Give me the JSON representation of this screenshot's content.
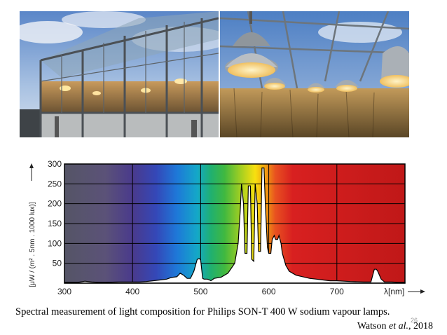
{
  "caption": "Spectral measurement of light composition for Philips SON-T 400 W sodium vapour lamps.",
  "citation": {
    "author": "Watson",
    "etal": "et al.,",
    "year": "2018"
  },
  "slide_number": "26",
  "chart_data": {
    "type": "area",
    "xlabel": "λ[nm]",
    "ylabel": "[μW / (m² . 5nm . 1000 lux)]",
    "xlim": [
      300,
      800
    ],
    "ylim": [
      0,
      300
    ],
    "x_ticks": [
      "300",
      "400",
      "500",
      "600",
      "700"
    ],
    "y_ticks": [
      "50",
      "100",
      "150",
      "200",
      "250",
      "300"
    ],
    "grid": true,
    "series": [
      {
        "x": [
          300,
          310,
          320,
          330,
          340,
          350,
          360,
          380,
          400,
          410,
          420,
          430,
          440,
          450,
          455,
          460,
          465,
          470,
          475,
          480,
          485,
          490,
          495,
          498,
          500,
          503,
          505,
          510,
          513,
          515,
          520,
          530,
          540,
          550,
          555,
          558,
          560,
          563,
          565,
          568,
          570,
          573,
          575,
          578,
          580,
          583,
          585,
          588,
          590,
          593,
          595,
          598,
          600,
          603,
          605,
          608,
          610,
          613,
          615,
          618,
          620,
          625,
          630,
          635,
          640,
          650,
          660,
          670,
          680,
          690,
          700,
          720,
          740,
          750,
          755,
          758,
          760,
          765,
          770,
          780,
          790,
          800
        ],
        "y": [
          2,
          2,
          2,
          5,
          3,
          2,
          2,
          3,
          3,
          3,
          4,
          6,
          8,
          10,
          13,
          15,
          16,
          25,
          20,
          12,
          12,
          30,
          60,
          62,
          58,
          12,
          10,
          10,
          8,
          6,
          12,
          15,
          25,
          50,
          100,
          180,
          250,
          200,
          75,
          75,
          245,
          245,
          60,
          55,
          250,
          200,
          80,
          80,
          290,
          290,
          200,
          90,
          75,
          75,
          110,
          120,
          110,
          110,
          120,
          100,
          75,
          45,
          30,
          25,
          20,
          16,
          12,
          10,
          8,
          6,
          6,
          4,
          3,
          3,
          35,
          35,
          30,
          10,
          3,
          3,
          2,
          2
        ]
      }
    ]
  }
}
